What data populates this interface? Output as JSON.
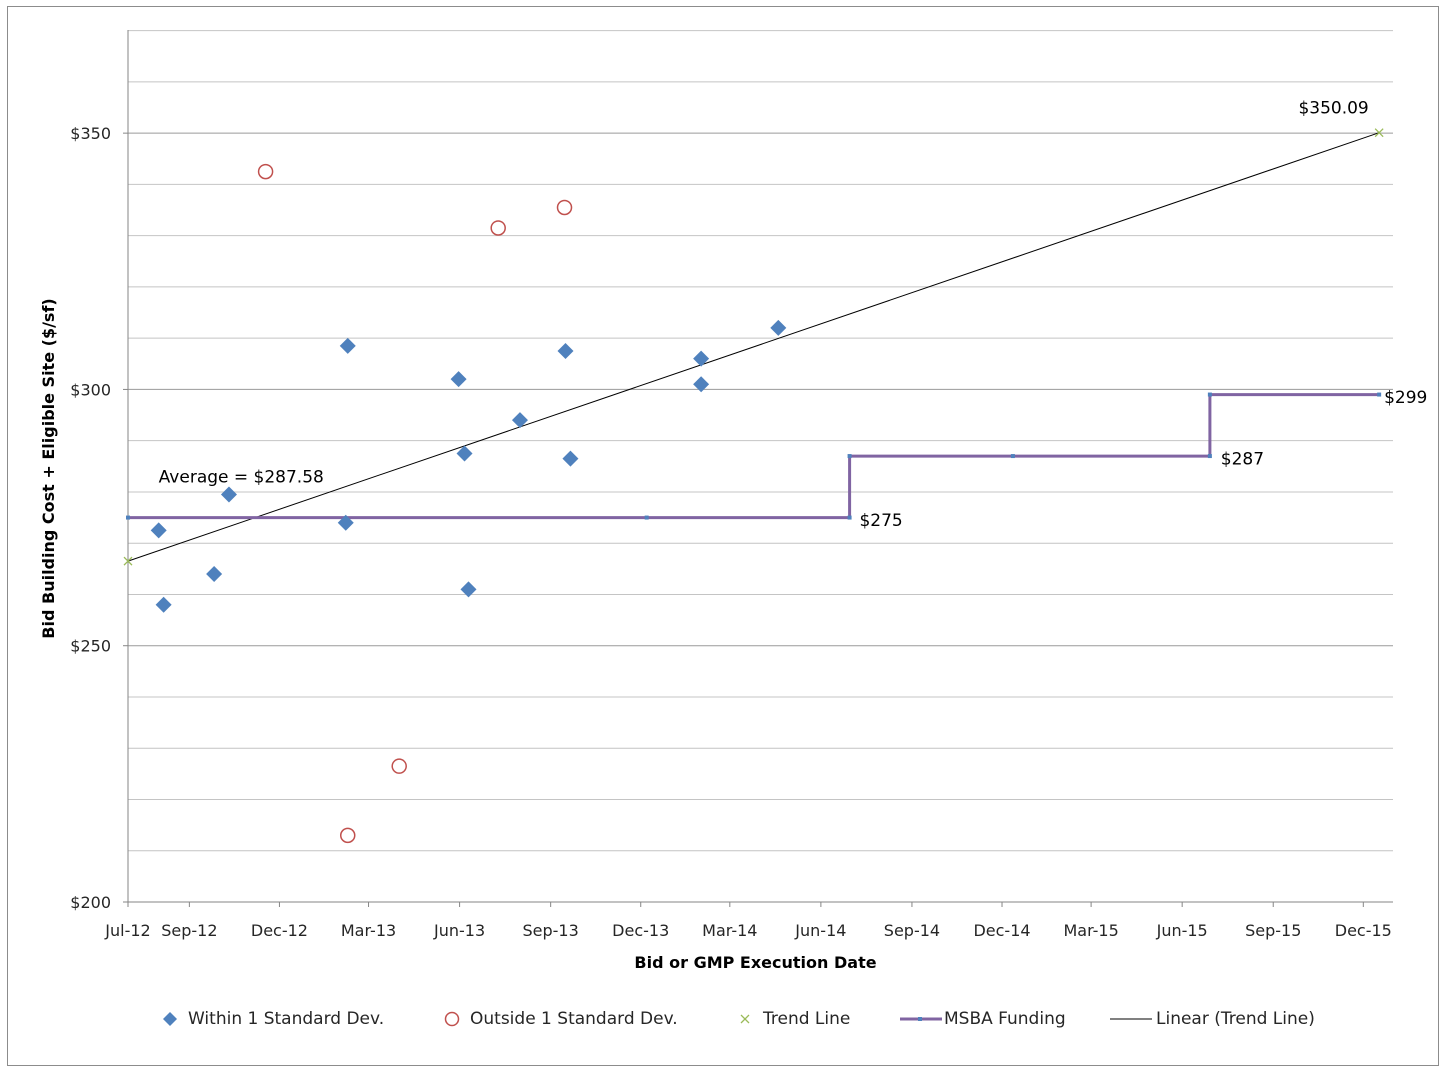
{
  "chart_data": {
    "type": "scatter",
    "title": "",
    "xlabel": "Bid or GMP Execution Date",
    "ylabel": "Bid Building Cost + Eligible Site ($/sf)",
    "ylim": [
      200,
      375
    ],
    "y_ticks": [
      "$200",
      "$250",
      "$300",
      "$350"
    ],
    "y_grid_step": 10,
    "x_ticks": [
      "Jul-12",
      "Sep-12",
      "Dec-12",
      "Mar-13",
      "Jun-13",
      "Sep-13",
      "Dec-13",
      "Mar-14",
      "Jun-14",
      "Sep-14",
      "Dec-14",
      "Mar-15",
      "Jun-15",
      "Sep-15",
      "Dec-15"
    ],
    "xlim": [
      "2012-07-01",
      "2015-12-31"
    ],
    "grid": true,
    "legend_position": "bottom",
    "series": [
      {
        "name": "Within 1 Standard Dev.",
        "marker": "diamond",
        "color": "#4f81bd",
        "points": [
          {
            "x": "2012-08-01",
            "y": 272.5
          },
          {
            "x": "2012-08-06",
            "y": 258
          },
          {
            "x": "2012-09-26",
            "y": 264
          },
          {
            "x": "2012-10-11",
            "y": 279.5
          },
          {
            "x": "2013-02-08",
            "y": 308.5
          },
          {
            "x": "2013-02-06",
            "y": 274
          },
          {
            "x": "2013-05-31",
            "y": 302
          },
          {
            "x": "2013-06-06",
            "y": 287.5
          },
          {
            "x": "2013-06-10",
            "y": 261
          },
          {
            "x": "2013-08-01",
            "y": 294
          },
          {
            "x": "2013-09-16",
            "y": 307.5
          },
          {
            "x": "2013-09-21",
            "y": 286.5
          },
          {
            "x": "2014-01-31",
            "y": 306
          },
          {
            "x": "2014-01-31",
            "y": 301
          },
          {
            "x": "2014-04-19",
            "y": 312
          }
        ]
      },
      {
        "name": "Outside 1 Standard Dev.",
        "marker": "circle",
        "color": "#c0504d",
        "points": [
          {
            "x": "2012-11-17",
            "y": 342.5
          },
          {
            "x": "2013-02-08",
            "y": 213
          },
          {
            "x": "2013-04-01",
            "y": 226.5
          },
          {
            "x": "2013-07-10",
            "y": 331.5
          },
          {
            "x": "2013-09-15",
            "y": 335.5
          }
        ]
      },
      {
        "name": "Trend Line",
        "marker": "x",
        "color": "#9bbb59",
        "points": [
          {
            "x": "2012-07-01",
            "y": 266.5
          },
          {
            "x": "2015-12-17",
            "y": 350.09
          }
        ]
      },
      {
        "name": "MSBA Funding",
        "type": "step-line",
        "color": "#8064a2",
        "points": [
          {
            "x": "2012-07-01",
            "y": 275
          },
          {
            "x": "2013-12-07",
            "y": 275
          },
          {
            "x": "2014-06-30",
            "y": 275
          },
          {
            "x": "2014-06-30",
            "y": 287
          },
          {
            "x": "2014-12-12",
            "y": 287
          },
          {
            "x": "2015-06-29",
            "y": 287
          },
          {
            "x": "2015-06-29",
            "y": 299
          },
          {
            "x": "2015-12-17",
            "y": 299
          }
        ]
      },
      {
        "name": "Linear (Trend Line)",
        "type": "line",
        "color": "#000000",
        "points": [
          {
            "x": "2012-07-01",
            "y": 266.5
          },
          {
            "x": "2015-12-17",
            "y": 350.09
          }
        ]
      }
    ],
    "annotations": [
      {
        "text": "Average = $287.58",
        "x": "2012-08-01",
        "y": 283,
        "anchor": "start"
      },
      {
        "text": "$350.09",
        "x": "2015-11-01",
        "y": 355,
        "anchor": "middle"
      },
      {
        "text": "$275",
        "x": "2014-07-10",
        "y": 274.5,
        "anchor": "start"
      },
      {
        "text": "$287",
        "x": "2015-07-10",
        "y": 286.5,
        "anchor": "start"
      },
      {
        "text": "$299",
        "x": "2015-12-22",
        "y": 298.5,
        "anchor": "start"
      }
    ]
  }
}
